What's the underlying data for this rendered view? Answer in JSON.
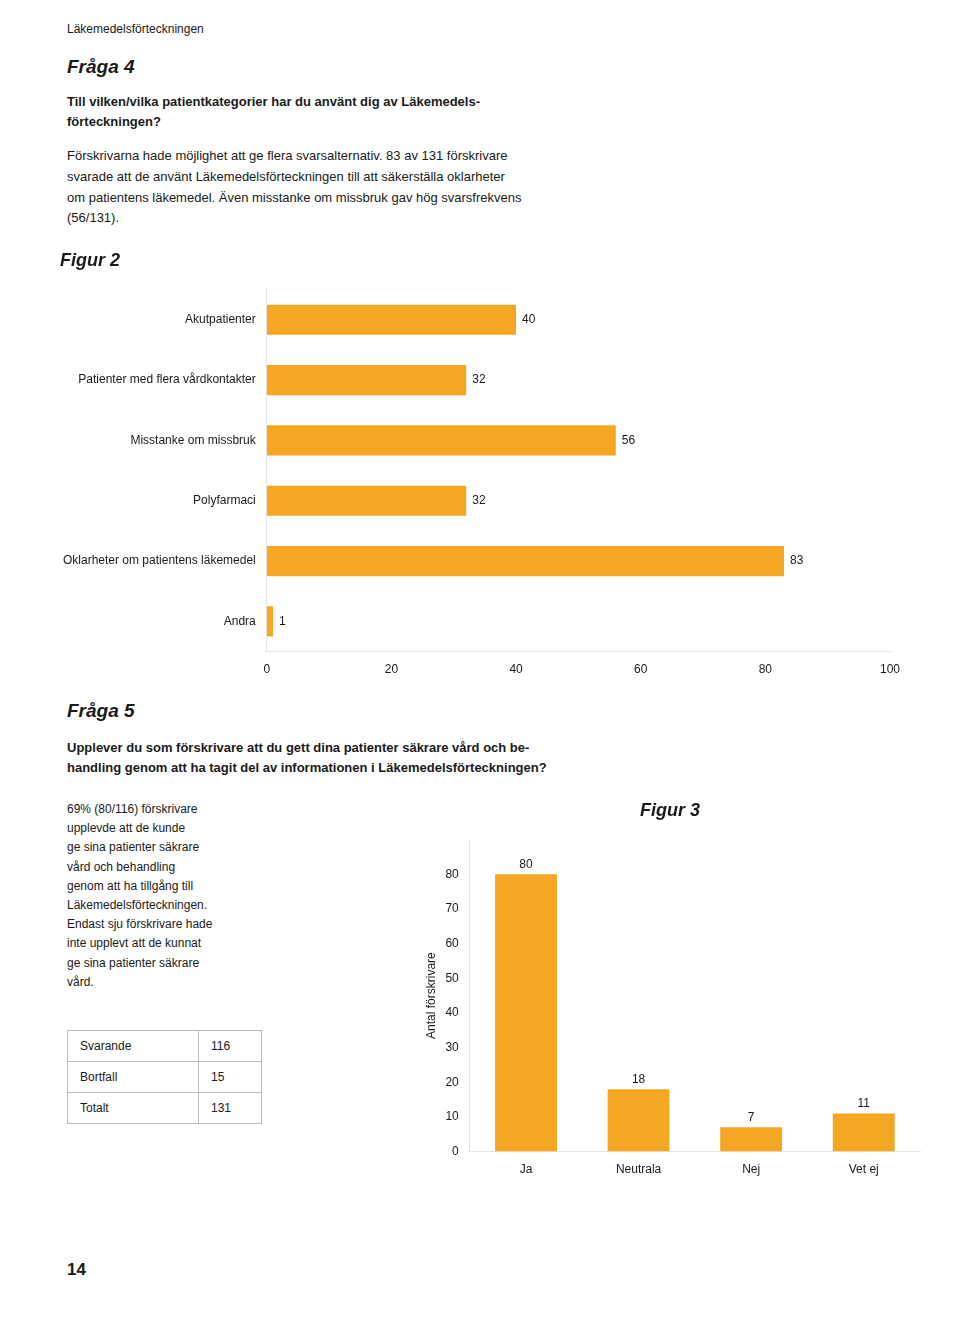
{
  "chart_data": [
    {
      "type": "bar",
      "title": "Figur 2",
      "orientation": "horizontal",
      "categories": [
        "Andra",
        "Oklarheter om patientens läkemedel",
        "Polyfarmaci",
        "Misstanke om missbruk",
        "Patienter med flera vårdkontakter",
        "Akutpatienter"
      ],
      "values": [
        1,
        83,
        32,
        56,
        32,
        40
      ],
      "color": "#F5A623",
      "xlim": [
        0,
        100
      ],
      "xticks": [
        0,
        20,
        40,
        60,
        80,
        100
      ],
      "grid": false,
      "data_labels": true,
      "annotations": [
        "Läkemedelsförteckningen",
        "Fråga 4",
        "Till vilken/vilka patientkategorier har du använt dig av Läkemedels-\nförteckningen?",
        "Förskrivarna hade möjlighet att ge flera svarsalternativ. 83 av 131 förskrivare\nsvarade att de använt Läkemedelsförteckningen till att säkerställa oklarheter\nom patientens läkemedel. Även misstanke om missbruk gav hög svarsfrekvens\n(56/131)."
      ]
    },
    {
      "type": "bar",
      "title": "Figur 3",
      "categories": [
        "Ja",
        "Neutrala",
        "Nej",
        "Vet ej"
      ],
      "values": [
        80,
        18,
        7,
        11
      ],
      "color": "#F5A623",
      "ylabel": "Antal förskrivare",
      "ylim": [
        0,
        90
      ],
      "yticks": [
        0,
        10,
        20,
        30,
        40,
        50,
        60,
        70,
        80
      ],
      "grid": false,
      "data_labels": true,
      "annotations": [
        "Fråga 5",
        "Upplever du som förskrivare att du gett dina patienter säkrare vård och be-\nhandling genom att ha tagit del av informationen i Läkemedelsförteckningen?",
        "69% (80/116) förskrivare\nupplevde att de kunde\nge sina patienter säkrare\nvård och behandling\ngenom att ha tillgång till\nLäkemedelsförteckningen.\nEndast sju förskrivare hade\ninte upplevt att de kunnat\nge sina patienter säkrare\nvård.",
        [
          [
            "Svarande",
            "116"
          ],
          [
            "Bortfall",
            "15"
          ],
          [
            "Totalt",
            "131"
          ]
        ],
        "14"
      ]
    }
  ]
}
